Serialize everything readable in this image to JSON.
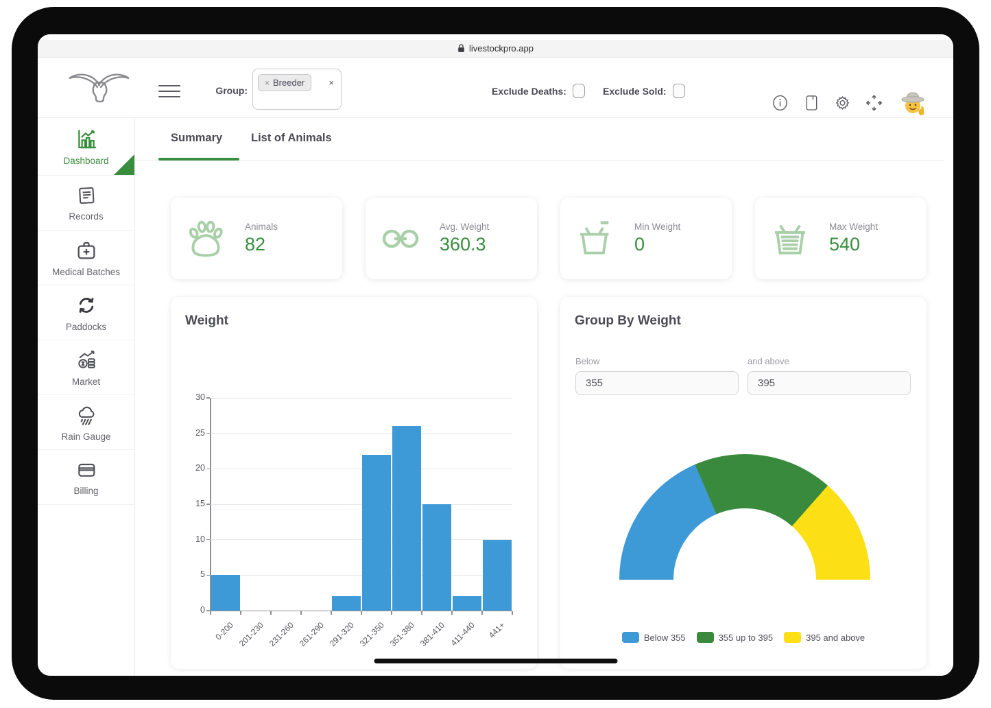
{
  "browser": {
    "url": "livestockpro.app"
  },
  "header": {
    "group_label": "Group:",
    "chip": {
      "remove": "×",
      "text": "Breeder"
    },
    "clear": "×",
    "exclude_deaths": "Exclude Deaths:",
    "exclude_sold": "Exclude Sold:"
  },
  "sidebar": {
    "items": [
      {
        "label": "Dashboard",
        "icon": "bar-chart-icon",
        "active": true
      },
      {
        "label": "Records",
        "icon": "document-icon",
        "active": false
      },
      {
        "label": "Medical Batches",
        "icon": "medical-bag-icon",
        "active": false
      },
      {
        "label": "Paddocks",
        "icon": "refresh-icon",
        "active": false
      },
      {
        "label": "Market",
        "icon": "coins-trend-icon",
        "active": false
      },
      {
        "label": "Rain Gauge",
        "icon": "rain-cloud-icon",
        "active": false
      },
      {
        "label": "Billing",
        "icon": "credit-card-icon",
        "active": false
      }
    ]
  },
  "tabs": {
    "summary": "Summary",
    "list": "List of Animals"
  },
  "stats": [
    {
      "label": "Animals",
      "value": "82",
      "icon": "paw-icon"
    },
    {
      "label": "Avg. Weight",
      "value": "360.3",
      "icon": "link-icon"
    },
    {
      "label": "Min Weight",
      "value": "0",
      "icon": "basket-empty-icon"
    },
    {
      "label": "Max Weight",
      "value": "540",
      "icon": "basket-full-icon"
    }
  ],
  "panels": {
    "weight_title": "Weight",
    "group_title": "Group By Weight",
    "below_label": "Below",
    "below_value": "355",
    "above_label": "and above",
    "above_value": "395"
  },
  "chart_data": [
    {
      "type": "bar",
      "title": "Weight",
      "categories": [
        "0-200",
        "201-230",
        "231-260",
        "261-290",
        "291-320",
        "321-350",
        "351-380",
        "381-410",
        "411-440",
        "441+"
      ],
      "values": [
        5,
        0,
        0,
        0,
        2,
        22,
        26,
        15,
        2,
        10
      ],
      "xlabel": "",
      "ylabel": "",
      "ylim": [
        0,
        30
      ],
      "yticks": [
        0,
        5,
        10,
        15,
        20,
        25,
        30
      ],
      "bar_color": "#3d9ad7",
      "grid": true,
      "x_tick_rotation": -45
    },
    {
      "type": "pie",
      "subtype": "half-donut-gauge",
      "title": "Group By Weight",
      "segments": [
        {
          "label": "Below 355",
          "value_pct": 37,
          "color": "#3d9ad7"
        },
        {
          "label": "355 up to 395",
          "value_pct": 36,
          "color": "#3a8a3d"
        },
        {
          "label": "395 and above",
          "value_pct": 27,
          "color": "#fddf15"
        }
      ],
      "legend_position": "bottom"
    }
  ],
  "colors": {
    "accent_green": "#388e3c",
    "icon_light_green": "#a9cfa9",
    "bar_blue": "#3d9ad7",
    "gauge_green": "#3a8a3d",
    "gauge_yellow": "#fddf15"
  }
}
